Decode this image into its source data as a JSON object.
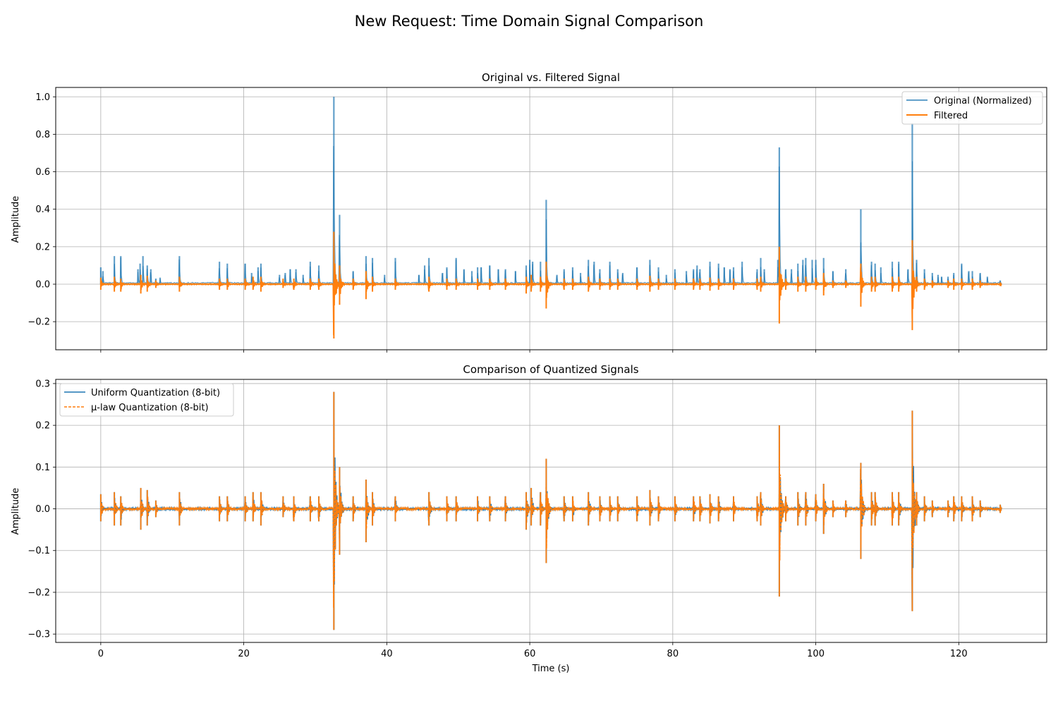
{
  "figure": {
    "suptitle": "New Request: Time Domain Signal Comparison"
  },
  "colors": {
    "original": "#1f77b4",
    "filtered": "#ff7f0e",
    "uniform": "#1f77b4",
    "mulaw": "#ff7f0e",
    "grid": "#b0b0b0"
  },
  "chart_data": [
    {
      "type": "line",
      "title": "Original vs. Filtered Signal",
      "xlabel": "",
      "ylabel": "Amplitude",
      "xlim": [
        -6.3,
        132.3
      ],
      "ylim": [
        -0.35,
        1.05
      ],
      "xticks": [
        0,
        20,
        40,
        60,
        80,
        100,
        120
      ],
      "xtick_labels_shown": false,
      "yticks": [
        -0.2,
        0.0,
        0.2,
        0.4,
        0.6,
        0.8,
        1.0
      ],
      "ytick_labels": [
        "−0.2",
        "0.0",
        "0.2",
        "0.4",
        "0.6",
        "0.8",
        "1.0"
      ],
      "grid": true,
      "legend_position": "upper right",
      "series": [
        {
          "name": "Original (Normalized)",
          "style": "solid",
          "kind": "positive_envelope",
          "peaks": [
            [
              0.0,
              0.09
            ],
            [
              0.3,
              0.07
            ],
            [
              1.9,
              0.15
            ],
            [
              2.8,
              0.15
            ],
            [
              5.2,
              0.08
            ],
            [
              5.5,
              0.11
            ],
            [
              5.9,
              0.15
            ],
            [
              6.5,
              0.1
            ],
            [
              7.0,
              0.08
            ],
            [
              7.7,
              0.03
            ],
            [
              8.3,
              0.035
            ],
            [
              11.0,
              0.15
            ],
            [
              16.6,
              0.12
            ],
            [
              17.7,
              0.11
            ],
            [
              20.2,
              0.11
            ],
            [
              21.1,
              0.06
            ],
            [
              22.0,
              0.09
            ],
            [
              22.4,
              0.11
            ],
            [
              25.0,
              0.05
            ],
            [
              25.8,
              0.06
            ],
            [
              26.5,
              0.08
            ],
            [
              27.3,
              0.08
            ],
            [
              28.3,
              0.05
            ],
            [
              29.3,
              0.12
            ],
            [
              30.5,
              0.1
            ],
            [
              32.6,
              1.0
            ],
            [
              33.4,
              0.37
            ],
            [
              35.3,
              0.07
            ],
            [
              37.1,
              0.15
            ],
            [
              38.0,
              0.14
            ],
            [
              39.7,
              0.05
            ],
            [
              41.2,
              0.14
            ],
            [
              44.5,
              0.05
            ],
            [
              45.3,
              0.1
            ],
            [
              45.9,
              0.14
            ],
            [
              47.8,
              0.06
            ],
            [
              48.4,
              0.09
            ],
            [
              49.7,
              0.14
            ],
            [
              50.8,
              0.08
            ],
            [
              51.9,
              0.07
            ],
            [
              52.7,
              0.09
            ],
            [
              53.2,
              0.09
            ],
            [
              54.4,
              0.1
            ],
            [
              55.6,
              0.08
            ],
            [
              56.6,
              0.08
            ],
            [
              58.0,
              0.07
            ],
            [
              59.5,
              0.1
            ],
            [
              60.0,
              0.13
            ],
            [
              60.4,
              0.12
            ],
            [
              61.5,
              0.12
            ],
            [
              62.3,
              0.45
            ],
            [
              63.8,
              0.05
            ],
            [
              64.8,
              0.08
            ],
            [
              66.0,
              0.09
            ],
            [
              67.1,
              0.06
            ],
            [
              68.2,
              0.13
            ],
            [
              69.0,
              0.12
            ],
            [
              69.8,
              0.08
            ],
            [
              71.2,
              0.12
            ],
            [
              72.3,
              0.08
            ],
            [
              73.0,
              0.06
            ],
            [
              75.0,
              0.09
            ],
            [
              76.8,
              0.13
            ],
            [
              78.0,
              0.09
            ],
            [
              79.1,
              0.05
            ],
            [
              80.3,
              0.08
            ],
            [
              81.9,
              0.07
            ],
            [
              82.9,
              0.08
            ],
            [
              83.4,
              0.1
            ],
            [
              83.8,
              0.08
            ],
            [
              85.2,
              0.12
            ],
            [
              86.4,
              0.11
            ],
            [
              87.2,
              0.09
            ],
            [
              88.0,
              0.08
            ],
            [
              88.5,
              0.09
            ],
            [
              89.7,
              0.12
            ],
            [
              91.8,
              0.08
            ],
            [
              92.3,
              0.14
            ],
            [
              92.8,
              0.08
            ],
            [
              94.7,
              0.13
            ],
            [
              94.9,
              0.73
            ],
            [
              95.8,
              0.08
            ],
            [
              96.6,
              0.08
            ],
            [
              97.5,
              0.11
            ],
            [
              98.2,
              0.13
            ],
            [
              98.6,
              0.14
            ],
            [
              99.5,
              0.13
            ],
            [
              100.0,
              0.13
            ],
            [
              101.1,
              0.14
            ],
            [
              102.4,
              0.07
            ],
            [
              104.2,
              0.08
            ],
            [
              106.3,
              0.4
            ],
            [
              107.8,
              0.12
            ],
            [
              108.3,
              0.11
            ],
            [
              109.1,
              0.09
            ],
            [
              110.7,
              0.12
            ],
            [
              111.6,
              0.12
            ],
            [
              112.9,
              0.08
            ],
            [
              113.5,
              0.86
            ],
            [
              114.1,
              0.13
            ],
            [
              115.2,
              0.08
            ],
            [
              116.3,
              0.06
            ],
            [
              117.1,
              0.05
            ],
            [
              117.6,
              0.04
            ],
            [
              118.5,
              0.04
            ],
            [
              119.3,
              0.06
            ],
            [
              120.4,
              0.11
            ],
            [
              121.4,
              0.07
            ],
            [
              121.9,
              0.07
            ],
            [
              123.0,
              0.06
            ],
            [
              124.0,
              0.04
            ],
            [
              125.8,
              0.02
            ]
          ]
        },
        {
          "name": "Filtered",
          "style": "solid",
          "kind": "bipolar_envelope",
          "peaks": [
            [
              0.0,
              0.035,
              -0.03
            ],
            [
              1.9,
              0.04,
              -0.04
            ],
            [
              2.8,
              0.03,
              -0.04
            ],
            [
              5.6,
              0.05,
              -0.05
            ],
            [
              6.5,
              0.045,
              -0.04
            ],
            [
              7.7,
              0.02,
              -0.02
            ],
            [
              11.0,
              0.04,
              -0.04
            ],
            [
              16.6,
              0.03,
              -0.03
            ],
            [
              17.7,
              0.03,
              -0.03
            ],
            [
              20.2,
              0.03,
              -0.03
            ],
            [
              21.3,
              0.04,
              -0.03
            ],
            [
              22.4,
              0.04,
              -0.04
            ],
            [
              25.5,
              0.03,
              -0.02
            ],
            [
              27.0,
              0.03,
              -0.03
            ],
            [
              29.3,
              0.03,
              -0.03
            ],
            [
              30.5,
              0.03,
              -0.03
            ],
            [
              32.6,
              0.28,
              -0.29
            ],
            [
              33.4,
              0.1,
              -0.11
            ],
            [
              35.3,
              0.03,
              -0.03
            ],
            [
              37.1,
              0.07,
              -0.08
            ],
            [
              38.0,
              0.04,
              -0.04
            ],
            [
              41.2,
              0.03,
              -0.03
            ],
            [
              45.9,
              0.04,
              -0.04
            ],
            [
              48.4,
              0.03,
              -0.03
            ],
            [
              49.7,
              0.03,
              -0.03
            ],
            [
              52.7,
              0.03,
              -0.03
            ],
            [
              54.4,
              0.03,
              -0.03
            ],
            [
              56.6,
              0.03,
              -0.03
            ],
            [
              59.5,
              0.04,
              -0.05
            ],
            [
              60.2,
              0.05,
              -0.04
            ],
            [
              61.5,
              0.04,
              -0.04
            ],
            [
              62.3,
              0.12,
              -0.13
            ],
            [
              64.8,
              0.03,
              -0.03
            ],
            [
              66.0,
              0.03,
              -0.03
            ],
            [
              68.2,
              0.04,
              -0.04
            ],
            [
              69.8,
              0.03,
              -0.03
            ],
            [
              71.2,
              0.03,
              -0.03
            ],
            [
              72.3,
              0.03,
              -0.03
            ],
            [
              75.0,
              0.03,
              -0.03
            ],
            [
              76.8,
              0.045,
              -0.04
            ],
            [
              78.0,
              0.03,
              -0.03
            ],
            [
              80.3,
              0.03,
              -0.03
            ],
            [
              82.9,
              0.03,
              -0.03
            ],
            [
              83.8,
              0.03,
              -0.03
            ],
            [
              85.2,
              0.035,
              -0.035
            ],
            [
              86.4,
              0.03,
              -0.03
            ],
            [
              88.5,
              0.03,
              -0.03
            ],
            [
              91.8,
              0.03,
              -0.03
            ],
            [
              92.3,
              0.04,
              -0.04
            ],
            [
              94.9,
              0.2,
              -0.21
            ],
            [
              95.8,
              0.03,
              -0.03
            ],
            [
              97.5,
              0.04,
              -0.04
            ],
            [
              98.6,
              0.04,
              -0.04
            ],
            [
              100.0,
              0.035,
              -0.03
            ],
            [
              101.1,
              0.06,
              -0.06
            ],
            [
              102.4,
              0.02,
              -0.02
            ],
            [
              104.2,
              0.02,
              -0.02
            ],
            [
              106.3,
              0.11,
              -0.12
            ],
            [
              107.8,
              0.04,
              -0.04
            ],
            [
              108.3,
              0.04,
              -0.04
            ],
            [
              110.7,
              0.04,
              -0.04
            ],
            [
              111.6,
              0.04,
              -0.04
            ],
            [
              113.5,
              0.235,
              -0.245
            ],
            [
              114.1,
              0.04,
              -0.04
            ],
            [
              115.2,
              0.03,
              -0.03
            ],
            [
              116.3,
              0.02,
              -0.02
            ],
            [
              118.5,
              0.02,
              -0.02
            ],
            [
              119.3,
              0.03,
              -0.03
            ],
            [
              120.4,
              0.03,
              -0.03
            ],
            [
              121.9,
              0.03,
              -0.03
            ],
            [
              123.0,
              0.02,
              -0.02
            ],
            [
              125.8,
              0.01,
              -0.01
            ]
          ]
        }
      ]
    },
    {
      "type": "line",
      "title": "Comparison of Quantized Signals",
      "xlabel": "Time (s)",
      "ylabel": "Amplitude",
      "xlim": [
        -6.3,
        132.3
      ],
      "ylim": [
        -0.32,
        0.31
      ],
      "xticks": [
        0,
        20,
        40,
        60,
        80,
        100,
        120
      ],
      "xtick_labels": [
        "0",
        "20",
        "40",
        "60",
        "80",
        "100",
        "120"
      ],
      "yticks": [
        -0.3,
        -0.2,
        -0.1,
        0.0,
        0.1,
        0.2,
        0.3
      ],
      "ytick_labels": [
        "−0.3",
        "−0.2",
        "−0.1",
        "0.0",
        "0.1",
        "0.2",
        "0.3"
      ],
      "grid": true,
      "legend_position": "upper left",
      "series": [
        {
          "name": "Uniform Quantization (8-bit)",
          "style": "solid",
          "kind": "bipolar_envelope",
          "same_peaks_as": "Filtered"
        },
        {
          "name": "μ-law Quantization (8-bit)",
          "style": "dashed",
          "kind": "bipolar_envelope",
          "same_peaks_as": "Filtered"
        }
      ]
    }
  ]
}
